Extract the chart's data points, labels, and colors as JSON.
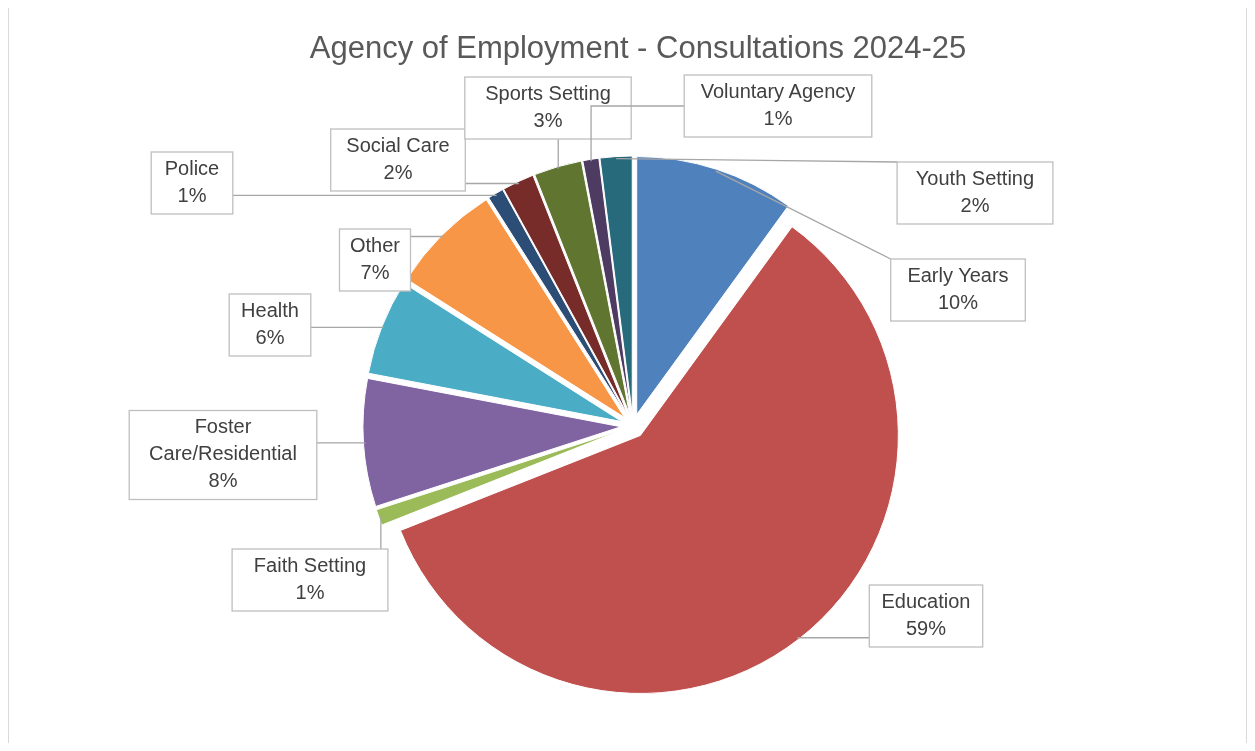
{
  "chart_data": {
    "type": "pie",
    "title": "Agency of Employment - Consultations 2024-25",
    "categories": [
      "Early Years",
      "Education",
      "Faith Setting",
      "Foster Care/Residential",
      "Health",
      "Other",
      "Police",
      "Social Care",
      "Sports Setting",
      "Voluntary Agency",
      "Youth Setting"
    ],
    "values": [
      10,
      59,
      1,
      8,
      6,
      7,
      1,
      2,
      3,
      1,
      2
    ],
    "value_labels": [
      "10%",
      "59%",
      "1%",
      "8%",
      "6%",
      "7%",
      "1%",
      "2%",
      "3%",
      "1%",
      "2%"
    ],
    "colors": [
      "#4f81bd",
      "#c0504d",
      "#9bbb59",
      "#8064a2",
      "#4bacc6",
      "#f79646",
      "#2c4d75",
      "#772c2a",
      "#5f7530",
      "#4d3b62",
      "#276a7c"
    ]
  }
}
